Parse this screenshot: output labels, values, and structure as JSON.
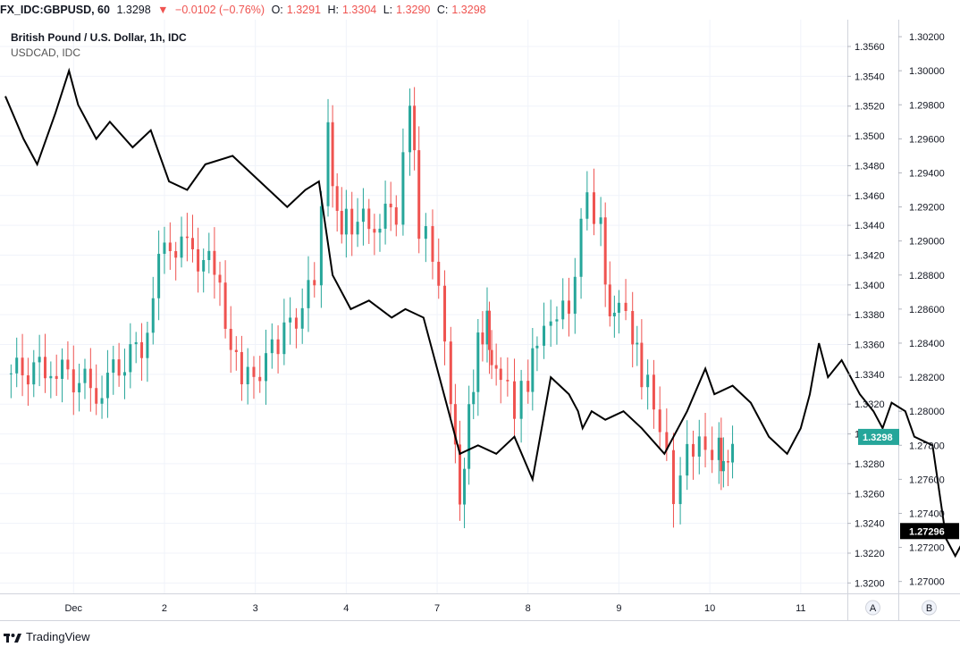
{
  "header": {
    "symbol": "FX_IDC:GBPUSD, 60",
    "last": "1.3298",
    "change": "−0.0102 (−0.76%)",
    "o_label": "O:",
    "o_value": "1.3291",
    "h_label": "H:",
    "h_value": "1.3304",
    "l_label": "L:",
    "l_value": "1.3290",
    "c_label": "C:",
    "c_value": "1.3298"
  },
  "legend": {
    "main": "British Pound / U.S. Dollar, 1h, IDC",
    "compare": "USDCAD, IDC"
  },
  "footer": {
    "brand": "TradingView"
  },
  "colors": {
    "up": "#26a69a",
    "down": "#ef5350",
    "line": "#000000",
    "grid": "#f0f3fa"
  },
  "chart_data": {
    "type": "candlestick",
    "series": [
      {
        "name": "British Pound / U.S. Dollar, 1h, IDC",
        "axis": "left",
        "ylim": [
          1.3193,
          1.3578
        ],
        "last_label": "1.3298",
        "x_days": [
          0.0,
          0.5,
          1.0,
          1.5,
          1.75,
          2.0,
          2.3,
          2.6,
          3.0,
          3.4,
          3.55,
          3.65,
          3.75,
          4.0,
          4.3,
          4.45,
          4.55,
          4.7,
          4.9,
          5.0,
          5.1,
          5.2,
          5.3,
          5.35,
          5.45,
          5.6,
          5.75,
          5.85,
          6.0,
          6.2,
          6.4,
          6.55,
          6.65,
          6.75,
          6.9,
          7.0,
          7.2,
          7.35,
          7.5,
          7.7,
          7.85,
          7.9,
          8.0
        ],
        "close": [
          1.334,
          1.3345,
          1.333,
          1.336,
          1.3428,
          1.3425,
          1.341,
          1.333,
          1.336,
          1.34,
          1.35,
          1.344,
          1.3445,
          1.344,
          1.345,
          1.353,
          1.344,
          1.342,
          1.333,
          1.3245,
          1.331,
          1.336,
          1.338,
          1.335,
          1.3345,
          1.332,
          1.3335,
          1.336,
          1.337,
          1.3385,
          1.346,
          1.344,
          1.338,
          1.3395,
          1.337,
          1.334,
          1.331,
          1.325,
          1.3285,
          1.329,
          1.329,
          1.328,
          1.3298
        ]
      },
      {
        "name": "USDCAD, IDC",
        "axis": "right",
        "type": "line",
        "ylim": [
          1.2693,
          1.303
        ],
        "last_label": "1.27296",
        "x_days": [
          0.0,
          0.2,
          0.35,
          0.55,
          0.7,
          0.8,
          1.0,
          1.15,
          1.4,
          1.6,
          1.8,
          2.0,
          2.2,
          2.5,
          2.8,
          3.1,
          3.3,
          3.45,
          3.6,
          3.8,
          4.0,
          4.25,
          4.4,
          4.6,
          5.0,
          5.2,
          5.4,
          5.6,
          5.8,
          6.0,
          6.2,
          6.3,
          6.35,
          6.45,
          6.6,
          6.8,
          7.0,
          7.25,
          7.5,
          7.7,
          7.8,
          8.0,
          8.2,
          8.4,
          8.6,
          8.75,
          8.85,
          8.95,
          9.05,
          9.2,
          9.4,
          9.55,
          9.65,
          9.75,
          9.9,
          10.0,
          10.2,
          10.35,
          10.45,
          10.5,
          10.6,
          10.7
        ],
        "values": [
          1.2985,
          1.296,
          1.2945,
          1.2975,
          1.3,
          1.298,
          1.296,
          1.297,
          1.2955,
          1.2965,
          1.2935,
          1.293,
          1.2945,
          1.295,
          1.2935,
          1.292,
          1.293,
          1.2935,
          1.288,
          1.286,
          1.2865,
          1.2855,
          1.286,
          1.2855,
          1.2775,
          1.278,
          1.2775,
          1.2785,
          1.276,
          1.282,
          1.281,
          1.28,
          1.279,
          1.28,
          1.2795,
          1.28,
          1.279,
          1.2775,
          1.28,
          1.2825,
          1.281,
          1.2815,
          1.2805,
          1.2785,
          1.2775,
          1.279,
          1.281,
          1.284,
          1.282,
          1.283,
          1.281,
          1.28,
          1.279,
          1.2805,
          1.28,
          1.2785,
          1.278,
          1.2725,
          1.2715,
          1.272,
          1.2729,
          1.273
        ]
      }
    ],
    "x_ticks": [
      {
        "day": 0.75,
        "label": "Dec"
      },
      {
        "day": 1.75,
        "label": "2"
      },
      {
        "day": 2.75,
        "label": "3"
      },
      {
        "day": 3.75,
        "label": "4"
      },
      {
        "day": 4.75,
        "label": "7"
      },
      {
        "day": 5.75,
        "label": "8"
      },
      {
        "day": 6.75,
        "label": "9"
      },
      {
        "day": 7.75,
        "label": "10"
      },
      {
        "day": 8.75,
        "label": "11"
      }
    ],
    "y_left_ticks": [
      "1.3560",
      "1.3540",
      "1.3520",
      "1.3500",
      "1.3480",
      "1.3460",
      "1.3440",
      "1.3420",
      "1.3400",
      "1.3380",
      "1.3360",
      "1.3340",
      "1.3320",
      "1.3300",
      "1.3280",
      "1.3260",
      "1.3240",
      "1.3220",
      "1.3200"
    ],
    "y_right_ticks": [
      "1.30200",
      "1.30000",
      "1.29800",
      "1.29600",
      "1.29400",
      "1.29200",
      "1.29000",
      "1.28800",
      "1.28600",
      "1.28400",
      "1.28200",
      "1.28000",
      "1.27800",
      "1.27600",
      "1.27400",
      "1.27200",
      "1.27000"
    ],
    "axis_labels": {
      "a": "A",
      "b": "B"
    },
    "grid": true
  }
}
